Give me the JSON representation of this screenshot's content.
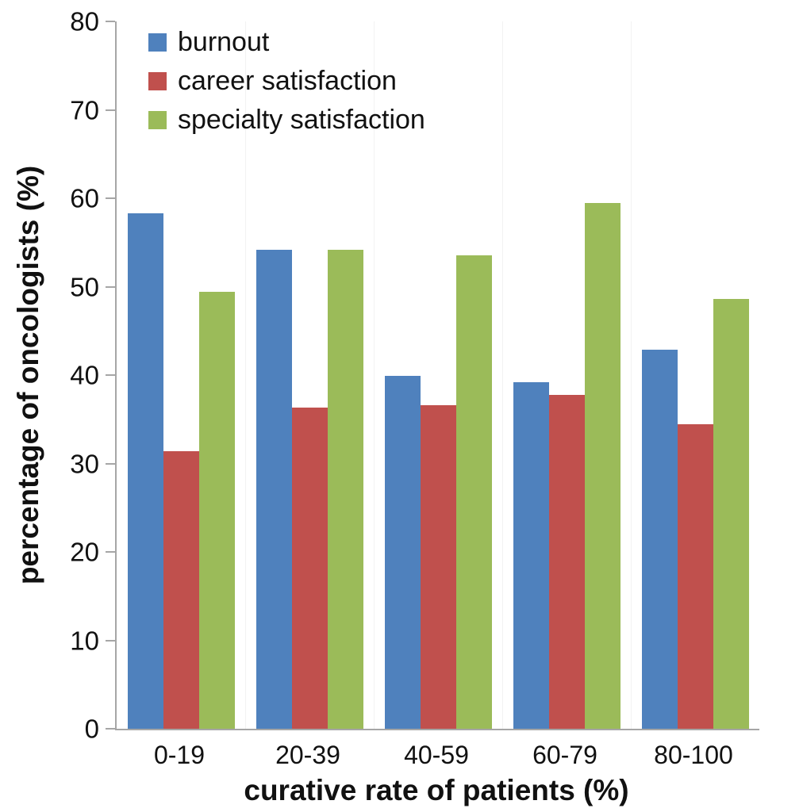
{
  "chart_data": {
    "type": "bar",
    "title": "",
    "xlabel": "curative rate of patients (%)",
    "ylabel": "percentage of oncologists (%)",
    "categories": [
      "0-19",
      "20-39",
      "40-59",
      "60-79",
      "80-100"
    ],
    "series": [
      {
        "name": "burnout",
        "color": "#4F81BD",
        "values": [
          58.3,
          54.2,
          39.9,
          39.2,
          42.9
        ]
      },
      {
        "name": "career satisfaction",
        "color": "#C0504D",
        "values": [
          31.4,
          36.3,
          36.6,
          37.8,
          34.4
        ]
      },
      {
        "name": "specialty satisfaction",
        "color": "#9BBB59",
        "values": [
          49.4,
          54.2,
          53.5,
          59.5,
          48.6
        ]
      }
    ],
    "ylim": [
      0,
      80
    ],
    "yticks": [
      0,
      10,
      20,
      30,
      40,
      50,
      60,
      70,
      80
    ],
    "legend_position": "top-left-inside-plot",
    "grid": "faint-vertical-category-boundaries",
    "colors": {
      "axis": "#a6a6a6",
      "text": "#111111",
      "gridline": "#f2f2f2",
      "background": "#ffffff"
    }
  }
}
